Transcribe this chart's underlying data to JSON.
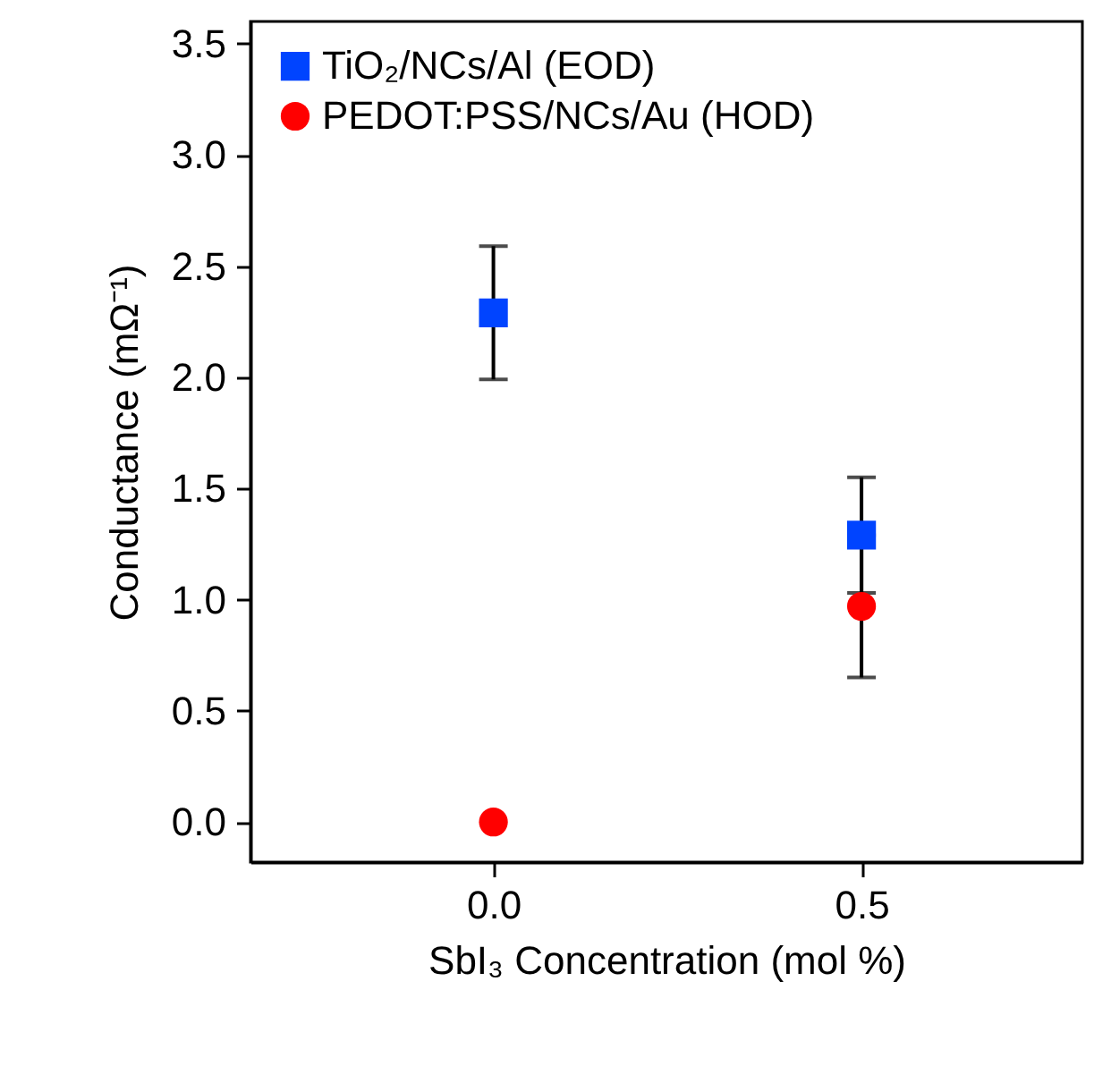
{
  "chart_data": {
    "type": "scatter",
    "xlabel": "SbI₃ Concentration (mol %)",
    "ylabel": "Conductance (mΩ⁻¹)",
    "x": [
      0,
      0.5
    ],
    "series": [
      {
        "name": "TiO₂/NCs/Al (EOD)",
        "color": "#0044ff",
        "marker": "square",
        "values": [
          2.29,
          1.29
        ],
        "errors": [
          0.3,
          0.26
        ]
      },
      {
        "name": "PEDOT:PSS/NCs/Au (HOD)",
        "color": "#ff0000",
        "marker": "circle",
        "values": [
          0,
          0.97
        ],
        "errors": [
          null,
          0.32
        ]
      }
    ],
    "xlim": [
      -0.33,
      0.8
    ],
    "ylim": [
      -0.18,
      3.6
    ],
    "xticks": [
      {
        "value": 0,
        "label": "0.0"
      },
      {
        "value": 0.5,
        "label": "0.5"
      }
    ],
    "yticks": [
      {
        "value": 0,
        "label": "0.0"
      },
      {
        "value": 0.5,
        "label": "0.5"
      },
      {
        "value": 1,
        "label": "1.0"
      },
      {
        "value": 1.5,
        "label": "1.5"
      },
      {
        "value": 2,
        "label": "2.0"
      },
      {
        "value": 2.5,
        "label": "2.5"
      },
      {
        "value": 3,
        "label": "3.0"
      },
      {
        "value": 3.5,
        "label": "3.5"
      }
    ],
    "legend": "top left",
    "grid": false
  }
}
